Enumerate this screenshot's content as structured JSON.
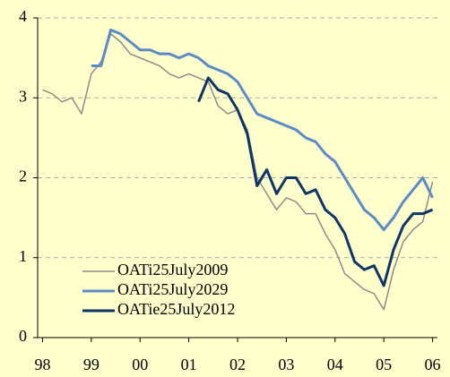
{
  "chart_data": {
    "type": "line",
    "x": [
      1998.0,
      1998.2,
      1998.4,
      1998.6,
      1998.8,
      1999.0,
      1999.2,
      1999.4,
      1999.6,
      1999.8,
      2000.0,
      2000.2,
      2000.4,
      2000.6,
      2000.8,
      2001.0,
      2001.2,
      2001.4,
      2001.6,
      2001.8,
      2002.0,
      2002.2,
      2002.4,
      2002.6,
      2002.8,
      2003.0,
      2003.2,
      2003.4,
      2003.6,
      2003.8,
      2004.0,
      2004.2,
      2004.4,
      2004.6,
      2004.8,
      2005.0,
      2005.2,
      2005.4,
      2005.6,
      2005.8,
      2006.0
    ],
    "series": [
      {
        "name": "OATi25July2009",
        "color": "#8c8c8c",
        "width": 1.5,
        "values": [
          3.1,
          3.05,
          2.95,
          3.0,
          2.8,
          3.3,
          3.45,
          3.8,
          3.7,
          3.55,
          3.5,
          3.45,
          3.4,
          3.3,
          3.25,
          3.3,
          3.25,
          3.2,
          2.9,
          2.8,
          2.85,
          2.6,
          2.0,
          1.8,
          1.6,
          1.75,
          1.7,
          1.55,
          1.55,
          1.3,
          1.1,
          0.8,
          0.7,
          0.6,
          0.55,
          0.35,
          0.85,
          1.2,
          1.35,
          1.45,
          1.95
        ]
      },
      {
        "name": "OATi25July2029",
        "color": "#5b8ac6",
        "width": 3,
        "values": [
          null,
          null,
          null,
          null,
          null,
          3.4,
          3.4,
          3.85,
          3.8,
          3.7,
          3.6,
          3.6,
          3.55,
          3.55,
          3.5,
          3.55,
          3.5,
          3.4,
          3.35,
          3.3,
          3.2,
          3.0,
          2.8,
          2.75,
          2.7,
          2.65,
          2.6,
          2.5,
          2.45,
          2.3,
          2.2,
          2.0,
          1.8,
          1.6,
          1.5,
          1.35,
          1.5,
          1.7,
          1.85,
          2.0,
          1.75
        ]
      },
      {
        "name": "OATie25July2012",
        "color": "#0d3566",
        "width": 3,
        "values": [
          null,
          null,
          null,
          null,
          null,
          null,
          null,
          null,
          null,
          null,
          null,
          null,
          null,
          null,
          null,
          null,
          2.95,
          3.25,
          3.1,
          3.05,
          2.85,
          2.55,
          1.9,
          2.1,
          1.8,
          2.0,
          2.0,
          1.8,
          1.85,
          1.6,
          1.5,
          1.3,
          0.95,
          0.85,
          0.9,
          0.65,
          1.1,
          1.4,
          1.55,
          1.55,
          1.6
        ]
      }
    ],
    "xlim": [
      1997.9,
      2006.1
    ],
    "xticks": [
      {
        "value": 1998,
        "label": "98"
      },
      {
        "value": 1999,
        "label": "99"
      },
      {
        "value": 2000,
        "label": "00"
      },
      {
        "value": 2001,
        "label": "01"
      },
      {
        "value": 2002,
        "label": "02"
      },
      {
        "value": 2003,
        "label": "03"
      },
      {
        "value": 2004,
        "label": "04"
      },
      {
        "value": 2005,
        "label": "05"
      },
      {
        "value": 2006,
        "label": "06"
      }
    ],
    "ylim": [
      0,
      4
    ],
    "yticks": [
      0,
      1,
      2,
      3,
      4
    ],
    "grid": true,
    "legend": "lower-left",
    "background": "#ffffcc"
  }
}
